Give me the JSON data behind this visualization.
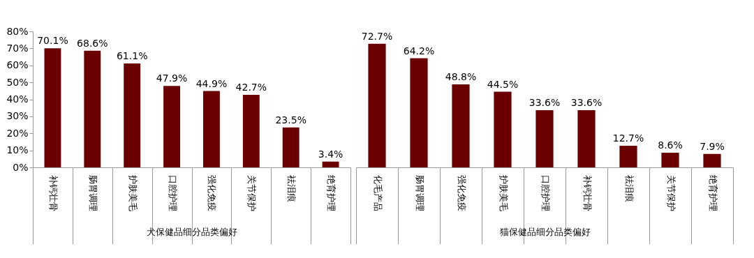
{
  "chart_data": [
    {
      "type": "bar",
      "xlabel": "犬保健品细分品类偏好",
      "categories": [
        "补钙壮骨",
        "肠胃调理",
        "护肤美毛",
        "口腔护理",
        "强化免疫",
        "关节保护",
        "祛泪痕",
        "绝育护理"
      ],
      "values": [
        70.1,
        68.6,
        61.1,
        47.9,
        44.9,
        42.7,
        23.5,
        3.4
      ],
      "value_labels": [
        "70.1%",
        "68.6%",
        "61.1%",
        "47.9%",
        "44.9%",
        "42.7%",
        "23.5%",
        "3.4%"
      ],
      "color": "#6b0000",
      "ylim": [
        0,
        80
      ],
      "yticks": [
        {
          "value": 0,
          "label": "0%"
        },
        {
          "value": 10,
          "label": "10%"
        },
        {
          "value": 20,
          "label": "20%"
        },
        {
          "value": 30,
          "label": "30%"
        },
        {
          "value": 40,
          "label": "40%"
        },
        {
          "value": 50,
          "label": "50%"
        },
        {
          "value": 60,
          "label": "60%"
        },
        {
          "value": 70,
          "label": "70%"
        },
        {
          "value": 80,
          "label": "80%"
        }
      ]
    },
    {
      "type": "bar",
      "xlabel": "猫保健品细分品类偏好",
      "categories": [
        "化毛产品",
        "肠胃调理",
        "强化免疫",
        "护肤美毛",
        "口腔护理",
        "补钙壮骨",
        "祛泪痕",
        "关节保护",
        "绝育护理"
      ],
      "values": [
        72.7,
        64.2,
        48.8,
        44.5,
        33.6,
        33.6,
        12.7,
        8.6,
        7.9
      ],
      "value_labels": [
        "72.7%",
        "64.2%",
        "48.8%",
        "44.5%",
        "33.6%",
        "33.6%",
        "12.7%",
        "8.6%",
        "7.9%"
      ],
      "color": "#6b0000",
      "ylim": [
        0,
        80
      ],
      "tick_labels": "x"
    }
  ]
}
